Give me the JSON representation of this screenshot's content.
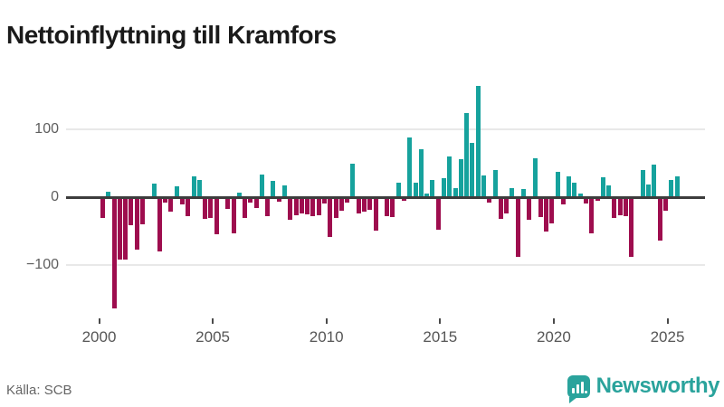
{
  "header": {
    "title": "Nettoinflyttning till Kramfors"
  },
  "footer": {
    "source": "Källa: SCB",
    "brand": "Newsworthy"
  },
  "colors": {
    "positive_bar": "#16a29d",
    "negative_bar": "#9e0d4e",
    "zero_line": "#3d3d3d",
    "gridline": "#e8e8e8",
    "axis_text": "#5e5e5e",
    "title_text": "#1a1a1a",
    "source_text": "#666666",
    "brand_teal": "#2aa39c"
  },
  "chart_data": {
    "type": "bar",
    "title": "Nettoinflyttning till Kramfors",
    "xlabel": "",
    "ylabel": "",
    "grid": true,
    "ylim": [
      -175,
      185
    ],
    "y_ticks": [
      {
        "label": "100",
        "value": 100
      },
      {
        "label": "0",
        "value": 0
      },
      {
        "label": "−100",
        "value": -100
      }
    ],
    "x_ticks": [
      {
        "label": "2000"
      },
      {
        "label": "2005"
      },
      {
        "label": "2010"
      },
      {
        "label": "2015"
      },
      {
        "label": "2020"
      },
      {
        "label": "2025"
      }
    ],
    "quarters": [
      "2000 Q1",
      "2000 Q2",
      "2000 Q3",
      "2000 Q4",
      "2001 Q1",
      "2001 Q2",
      "2001 Q3",
      "2001 Q4",
      "2002 Q1",
      "2002 Q2",
      "2002 Q3",
      "2002 Q4",
      "2003 Q1",
      "2003 Q2",
      "2003 Q3",
      "2003 Q4",
      "2004 Q1",
      "2004 Q2",
      "2004 Q3",
      "2004 Q4",
      "2005 Q1",
      "2005 Q2",
      "2005 Q3",
      "2005 Q4",
      "2006 Q1",
      "2006 Q2",
      "2006 Q3",
      "2006 Q4",
      "2007 Q1",
      "2007 Q2",
      "2007 Q3",
      "2007 Q4",
      "2008 Q1",
      "2008 Q2",
      "2008 Q3",
      "2008 Q4",
      "2009 Q1",
      "2009 Q2",
      "2009 Q3",
      "2009 Q4",
      "2010 Q1",
      "2010 Q2",
      "2010 Q3",
      "2010 Q4",
      "2011 Q1",
      "2011 Q2",
      "2011 Q3",
      "2011 Q4",
      "2012 Q1",
      "2012 Q2",
      "2012 Q3",
      "2012 Q4",
      "2013 Q1",
      "2013 Q2",
      "2013 Q3",
      "2013 Q4",
      "2014 Q1",
      "2014 Q2",
      "2014 Q3",
      "2014 Q4",
      "2015 Q1",
      "2015 Q2",
      "2015 Q3",
      "2015 Q4",
      "2016 Q1",
      "2016 Q2",
      "2016 Q3",
      "2016 Q4",
      "2017 Q1",
      "2017 Q2",
      "2017 Q3",
      "2017 Q4",
      "2018 Q1",
      "2018 Q2",
      "2018 Q3",
      "2018 Q4",
      "2019 Q1",
      "2019 Q2",
      "2019 Q3",
      "2019 Q4",
      "2020 Q1",
      "2020 Q2",
      "2020 Q3",
      "2020 Q4",
      "2021 Q1",
      "2021 Q2",
      "2021 Q3",
      "2021 Q4",
      "2022 Q1",
      "2022 Q2",
      "2022 Q3",
      "2022 Q4",
      "2023 Q1",
      "2023 Q2",
      "2023 Q3",
      "2023 Q4",
      "2024 Q1",
      "2024 Q2",
      "2024 Q3",
      "2024 Q4",
      "2025 Q1",
      "2025 Q2"
    ],
    "values": [
      -29,
      8,
      -162,
      -90,
      -91,
      -40,
      -76,
      -38,
      0,
      20,
      -78,
      -7,
      -20,
      16,
      -9,
      -27,
      31,
      26,
      -31,
      -29,
      -53,
      0,
      -16,
      -52,
      7,
      -29,
      -6,
      -14,
      34,
      -27,
      24,
      -5,
      17,
      -32,
      -25,
      -23,
      -24,
      -27,
      -25,
      -8,
      -57,
      -29,
      -19,
      -7,
      50,
      -22,
      -20,
      -17,
      -48,
      0,
      -26,
      -28,
      22,
      -4,
      88,
      22,
      71,
      5,
      25,
      -47,
      28,
      60,
      14,
      56,
      124,
      80,
      164,
      32,
      -6,
      40,
      -31,
      -22,
      13,
      -87,
      12,
      -32,
      58,
      -28,
      -49,
      -37,
      37,
      -9,
      31,
      21,
      5,
      -8,
      -52,
      -4,
      30,
      17,
      -29,
      -25,
      -26,
      -87,
      2,
      40,
      19,
      48,
      -63,
      -18,
      25,
      31
    ]
  }
}
